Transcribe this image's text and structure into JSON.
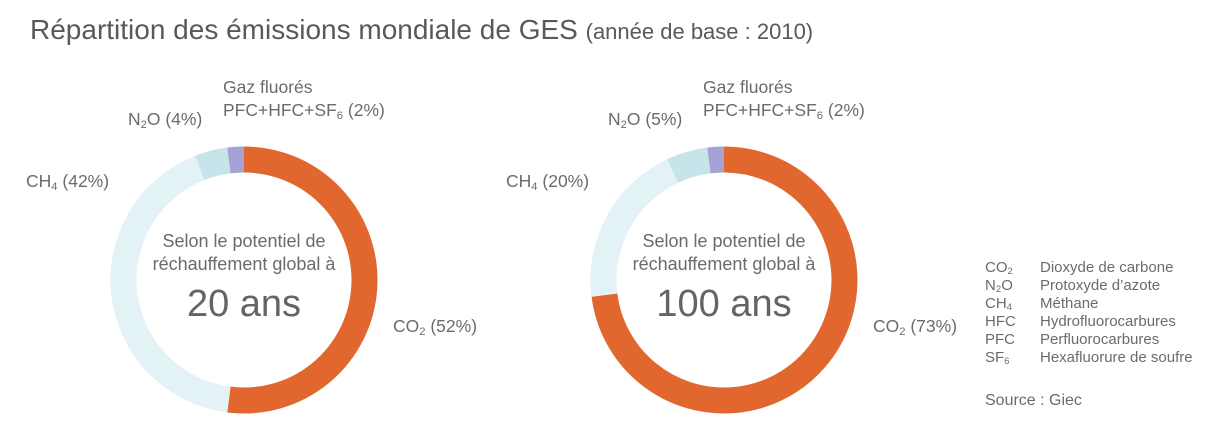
{
  "page": {
    "title": "Répartition des émissions mondiale de GES",
    "title_suffix": "(année de base : 2010)",
    "source": "Source : Giec"
  },
  "chart_data": [
    {
      "type": "pie",
      "variant": "donut",
      "unit": "%",
      "center_text": {
        "line1": "Selon le potentiel de",
        "line2": "réchauffement global à",
        "value": "20 ans"
      },
      "segments": [
        {
          "id": "co2",
          "label": "CO_2 (52%)",
          "value": 52,
          "color": "#E1672E"
        },
        {
          "id": "ch4",
          "label": "CH_4 (42%)",
          "value": 42,
          "color": "#E3F2F5"
        },
        {
          "id": "n2o",
          "label": "N_2O (4%)",
          "value": 4,
          "color": "#C8E4EB"
        },
        {
          "id": "fgas",
          "heading": "Gaz fluorés",
          "label": "PFC+HFC+SF_6 (2%)",
          "value": 2,
          "color": "#A7A2D5"
        }
      ]
    },
    {
      "type": "pie",
      "variant": "donut",
      "unit": "%",
      "center_text": {
        "line1": "Selon le potentiel de",
        "line2": "réchauffement global à",
        "value": "100 ans"
      },
      "segments": [
        {
          "id": "co2",
          "label": "CO_2 (73%)",
          "value": 73,
          "color": "#E1672E"
        },
        {
          "id": "ch4",
          "label": "CH_4 (20%)",
          "value": 20,
          "color": "#E3F2F5"
        },
        {
          "id": "n2o",
          "label": "N_2O (5%)",
          "value": 5,
          "color": "#C8E4EB"
        },
        {
          "id": "fgas",
          "heading": "Gaz fluorés",
          "label": "PFC+HFC+SF_6 (2%)",
          "value": 2,
          "color": "#A7A2D5"
        }
      ]
    }
  ],
  "legend": {
    "items": [
      {
        "symbol": "CO_2",
        "name": "Dioxyde de carbone"
      },
      {
        "symbol": "N_2O",
        "name": "Protoxyde d’azote"
      },
      {
        "symbol": "CH_4",
        "name": "Méthane"
      },
      {
        "symbol": "HFC",
        "name": "Hydrofluorocarbures"
      },
      {
        "symbol": "PFC",
        "name": "Perfluorocarbures"
      },
      {
        "symbol": "SF_6",
        "name": "Hexafluorure de soufre"
      }
    ]
  }
}
